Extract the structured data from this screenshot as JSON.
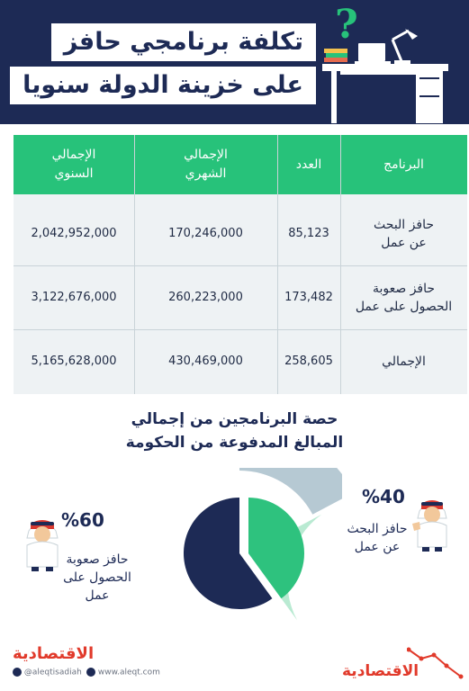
{
  "header": {
    "title_line1": "تكلفة برنامجي حافز",
    "title_line2": "على خزينة الدولة سنويا",
    "question_mark": "?"
  },
  "table": {
    "columns": {
      "program": "البرنامج",
      "count": "العدد",
      "monthly_1": "الإجمالي",
      "monthly_2": "الشهري",
      "annual_1": "الإجمالي",
      "annual_2": "السنوي"
    },
    "rows": [
      {
        "program_1": "حافز البحث",
        "program_2": "عن عمل",
        "count": "85,123",
        "monthly": "170,246,000",
        "annual": "2,042,952,000"
      },
      {
        "program_1": "حافز صعوبة",
        "program_2": "الحصول على عمل",
        "count": "173,482",
        "monthly": "260,223,000",
        "annual": "3,122,676,000"
      },
      {
        "program_1": "الإجمالي",
        "program_2": "",
        "count": "258,605",
        "monthly": "430,469,000",
        "annual": "5,165,628,000"
      }
    ]
  },
  "share_chart": {
    "title_line1": "حصة البرنامجين من إجمالي",
    "title_line2": "المبالغ المدفوعة من الحكومة",
    "left": {
      "percent": "%60",
      "label_1": "حافز صعوبة",
      "label_2": "الحصول على عمل",
      "value": 60,
      "color": "#1d2a55",
      "ring_color": "#b6c9d3"
    },
    "right": {
      "percent": "%40",
      "label_1": "حافز البحث",
      "label_2": "عن عمل",
      "value": 40,
      "color": "#2ec27e",
      "ring_color": "#b9ead2"
    }
  },
  "footer": {
    "logo_left": "الاقتصادية",
    "logo_right": "الاقتصادية",
    "twitter": "@aleqtisadiah",
    "website": "www.aleqt.com"
  }
}
